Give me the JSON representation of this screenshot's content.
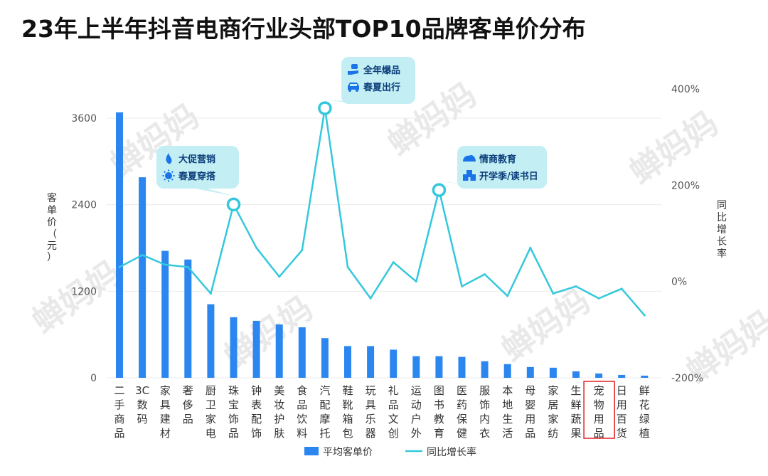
{
  "title": "23年上半年抖音电商行业头部TOP10品牌客单价分布",
  "chart_data": {
    "type": "bar+line",
    "title": "23年上半年抖音电商行业头部TOP10品牌客单价分布",
    "categories": [
      "二手商品",
      "3C数码",
      "家具建材",
      "奢侈品",
      "厨卫家电",
      "珠宝饰品",
      "钟表配饰",
      "美妆护肤",
      "食品饮料",
      "汽配摩托",
      "鞋靴箱包",
      "玩具乐器",
      "礼品文创",
      "运动户外",
      "图书教育",
      "医药保健",
      "服饰内衣",
      "本地生活",
      "母婴用品",
      "家居家纺",
      "生鲜蔬果",
      "宠物用品",
      "日用百货",
      "鲜花绿植"
    ],
    "series": [
      {
        "name": "平均客单价",
        "axis": "left",
        "type": "bar",
        "values": [
          3680,
          2780,
          1760,
          1640,
          1020,
          840,
          790,
          740,
          700,
          550,
          440,
          440,
          390,
          300,
          300,
          290,
          230,
          190,
          150,
          140,
          90,
          60,
          40,
          30
        ]
      },
      {
        "name": "同比增长率",
        "axis": "right",
        "type": "line",
        "values": [
          30,
          55,
          35,
          30,
          -25,
          160,
          70,
          10,
          65,
          360,
          30,
          -35,
          40,
          0,
          190,
          -10,
          15,
          -30,
          70,
          -25,
          -10,
          -35,
          -15,
          -70
        ]
      }
    ],
    "y_left": {
      "label": "客单价（元）",
      "ticks": [
        0,
        1200,
        2400,
        3600
      ],
      "tick_labels": [
        "0",
        "1200",
        "2400",
        "3600"
      ],
      "range": [
        0,
        3750
      ]
    },
    "y_right": {
      "label": "同比增长率",
      "ticks": [
        -200,
        0,
        200,
        400
      ],
      "tick_labels": [
        "-200%",
        "0%",
        "200%",
        "400%"
      ],
      "range": [
        -200,
        420
      ]
    },
    "grid": true,
    "legend": {
      "position": "bottom",
      "items": [
        "平均客单价",
        "同比增长率"
      ]
    },
    "annotations": [
      {
        "category_index": 5,
        "lines": [
          "大促营销",
          "春夏穿搭"
        ],
        "icons": [
          "flame-icon",
          "sun-icon"
        ]
      },
      {
        "category_index": 9,
        "lines": [
          "全年爆品",
          "春夏出行"
        ],
        "icons": [
          "hand-money-icon",
          "car-icon"
        ]
      },
      {
        "category_index": 14,
        "lines": [
          "情商教育",
          "开学季/读书日"
        ],
        "icons": [
          "cloud-icon",
          "school-icon"
        ]
      }
    ],
    "highlight": {
      "category": "宠物用品",
      "color": "#e02020"
    }
  },
  "colors": {
    "bar": "#2b86f0",
    "line": "#34c8dc",
    "callout_bg": "#c2eef4",
    "callout_text": "#0c3d7a",
    "icon": "#1a73e8",
    "highlight": "#e02020",
    "grid": "#ececec"
  },
  "watermark": "蝉妈妈"
}
